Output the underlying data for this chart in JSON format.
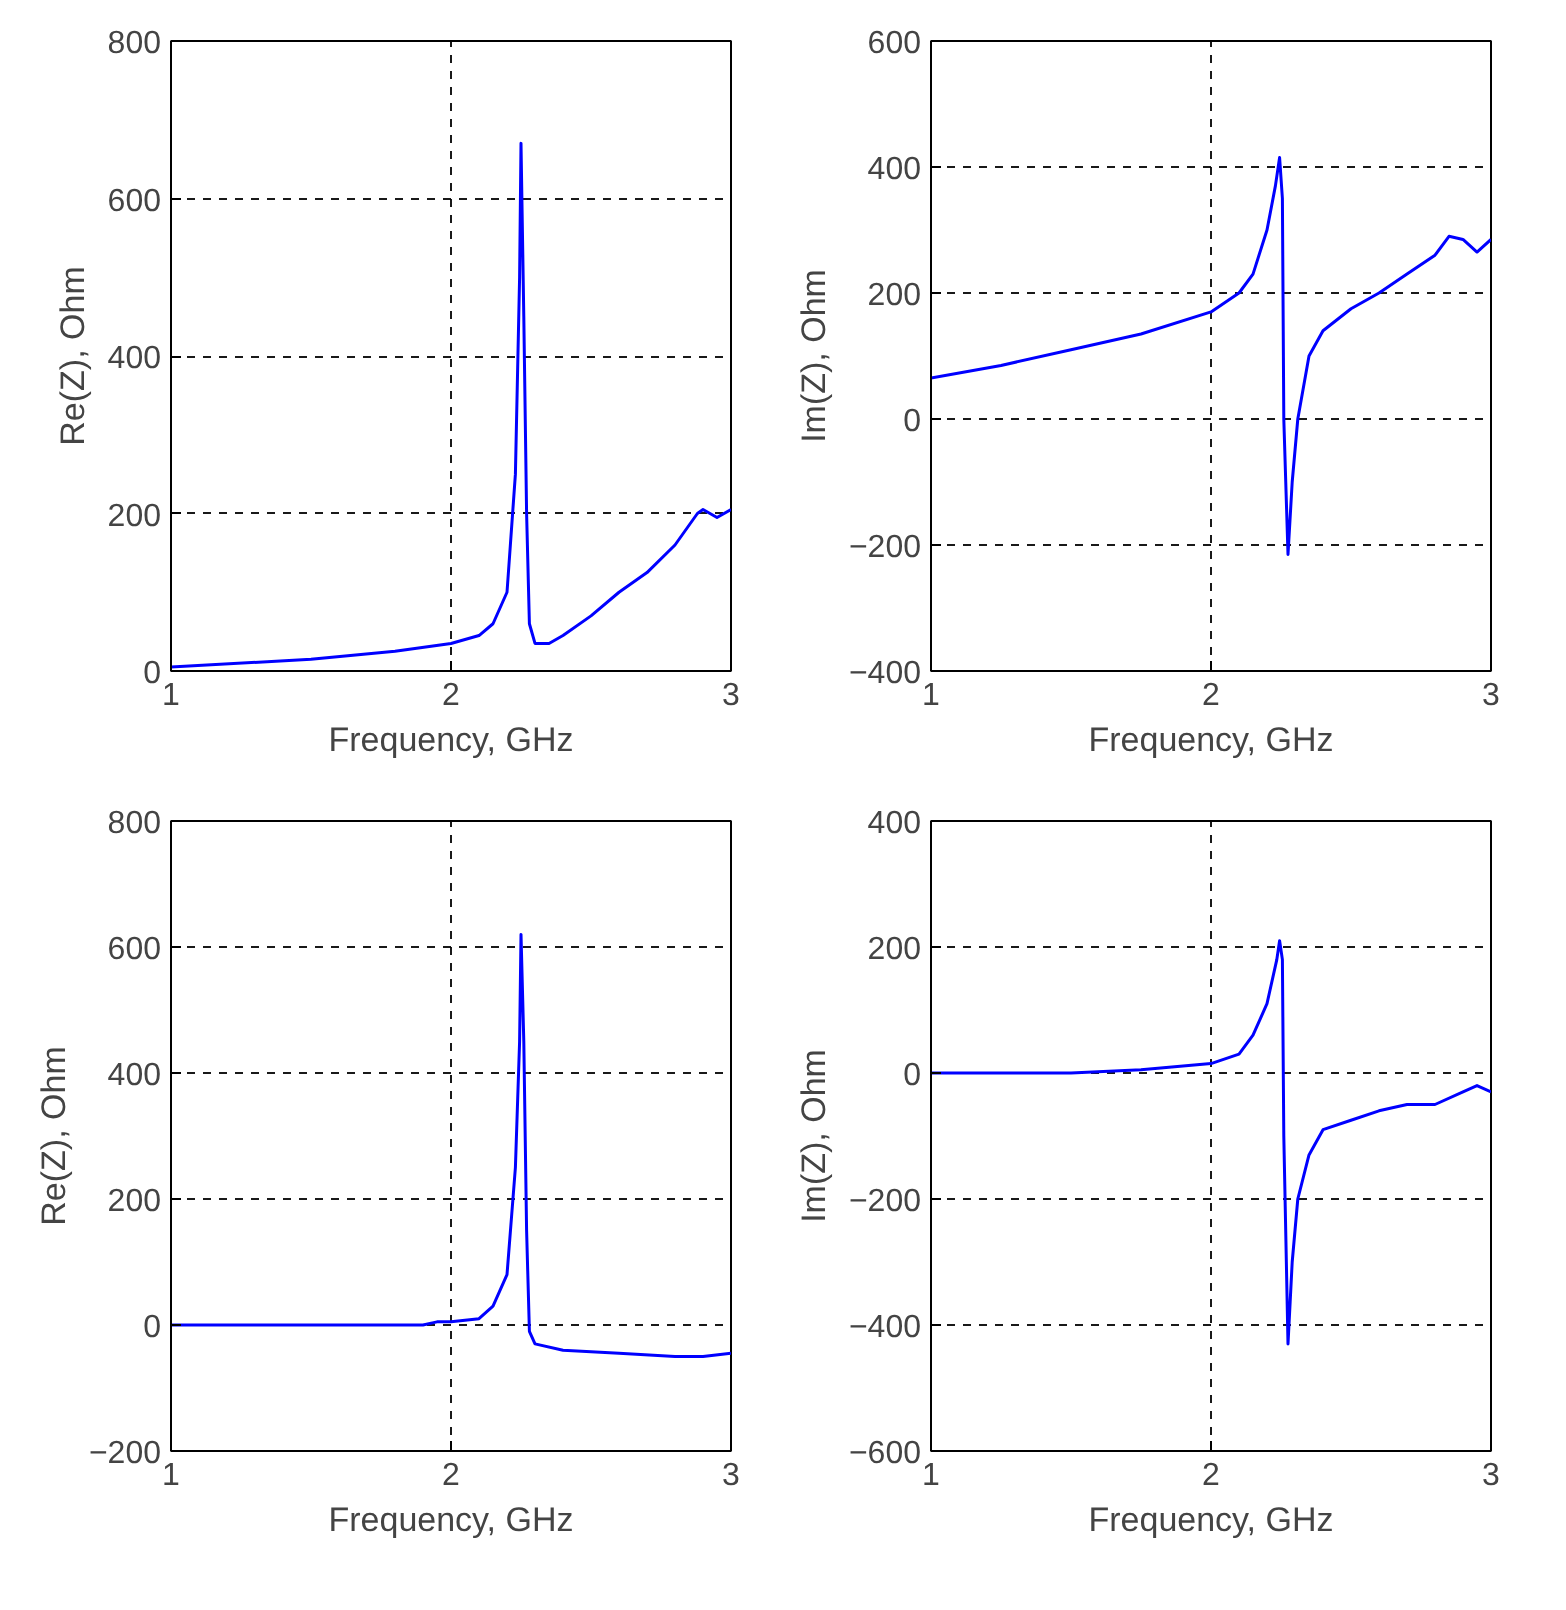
{
  "chart_data": [
    {
      "type": "line",
      "xlabel": "Frequency, GHz",
      "ylabel": "Re(Z), Ohm",
      "xlim": [
        1,
        3
      ],
      "xticks": [
        1,
        2,
        3
      ],
      "ylim": [
        0,
        800
      ],
      "yticks": [
        0,
        200,
        400,
        600,
        800
      ],
      "grid": true,
      "series": [
        {
          "color": "#0000ff",
          "x": [
            1.0,
            1.5,
            1.8,
            2.0,
            2.1,
            2.15,
            2.2,
            2.23,
            2.245,
            2.25,
            2.26,
            2.27,
            2.28,
            2.3,
            2.35,
            2.4,
            2.5,
            2.6,
            2.7,
            2.8,
            2.88,
            2.9,
            2.95,
            3.0
          ],
          "values": [
            5,
            15,
            25,
            35,
            45,
            60,
            100,
            250,
            500,
            670,
            450,
            200,
            60,
            35,
            35,
            45,
            70,
            100,
            125,
            160,
            200,
            205,
            195,
            205
          ]
        }
      ]
    },
    {
      "type": "line",
      "xlabel": "Frequency, GHz",
      "ylabel": "Im(Z), Ohm",
      "xlim": [
        1,
        3
      ],
      "xticks": [
        1,
        2,
        3
      ],
      "ylim": [
        -400,
        600
      ],
      "yticks": [
        -400,
        -200,
        0,
        200,
        400,
        600
      ],
      "grid": true,
      "series": [
        {
          "color": "#0000ff",
          "x": [
            1.0,
            1.25,
            1.5,
            1.75,
            2.0,
            2.1,
            2.15,
            2.2,
            2.23,
            2.245,
            2.255,
            2.26,
            2.275,
            2.29,
            2.31,
            2.35,
            2.4,
            2.5,
            2.6,
            2.7,
            2.8,
            2.85,
            2.9,
            2.95,
            3.0
          ],
          "values": [
            65,
            85,
            110,
            135,
            170,
            200,
            230,
            300,
            370,
            415,
            350,
            0,
            -215,
            -100,
            0,
            100,
            140,
            175,
            200,
            230,
            260,
            290,
            285,
            265,
            285
          ]
        }
      ]
    },
    {
      "type": "line",
      "xlabel": "Frequency, GHz",
      "ylabel": "Re(Z), Ohm",
      "xlim": [
        1,
        3
      ],
      "xticks": [
        1,
        2,
        3
      ],
      "ylim": [
        -200,
        800
      ],
      "yticks": [
        -200,
        0,
        200,
        400,
        600,
        800
      ],
      "grid": true,
      "series": [
        {
          "color": "#0000ff",
          "x": [
            1.0,
            1.9,
            1.95,
            2.0,
            2.1,
            2.15,
            2.2,
            2.23,
            2.245,
            2.25,
            2.26,
            2.27,
            2.28,
            2.3,
            2.4,
            2.6,
            2.8,
            2.9,
            3.0
          ],
          "values": [
            0,
            0,
            5,
            5,
            10,
            30,
            80,
            250,
            450,
            620,
            450,
            150,
            -10,
            -30,
            -40,
            -45,
            -50,
            -50,
            -45
          ]
        }
      ]
    },
    {
      "type": "line",
      "xlabel": "Frequency, GHz",
      "ylabel": "Im(Z), Ohm",
      "xlim": [
        1,
        3
      ],
      "xticks": [
        1,
        2,
        3
      ],
      "ylim": [
        -600,
        400
      ],
      "yticks": [
        -600,
        -400,
        -200,
        0,
        200,
        400
      ],
      "grid": true,
      "series": [
        {
          "color": "#0000ff",
          "x": [
            1.0,
            1.5,
            1.75,
            2.0,
            2.1,
            2.15,
            2.2,
            2.235,
            2.245,
            2.255,
            2.26,
            2.275,
            2.29,
            2.31,
            2.35,
            2.4,
            2.5,
            2.6,
            2.7,
            2.8,
            2.9,
            2.95,
            3.0
          ],
          "values": [
            0,
            0,
            5,
            15,
            30,
            60,
            110,
            180,
            210,
            180,
            -100,
            -430,
            -300,
            -200,
            -130,
            -90,
            -75,
            -60,
            -50,
            -50,
            -30,
            -20,
            -30
          ]
        }
      ]
    }
  ]
}
